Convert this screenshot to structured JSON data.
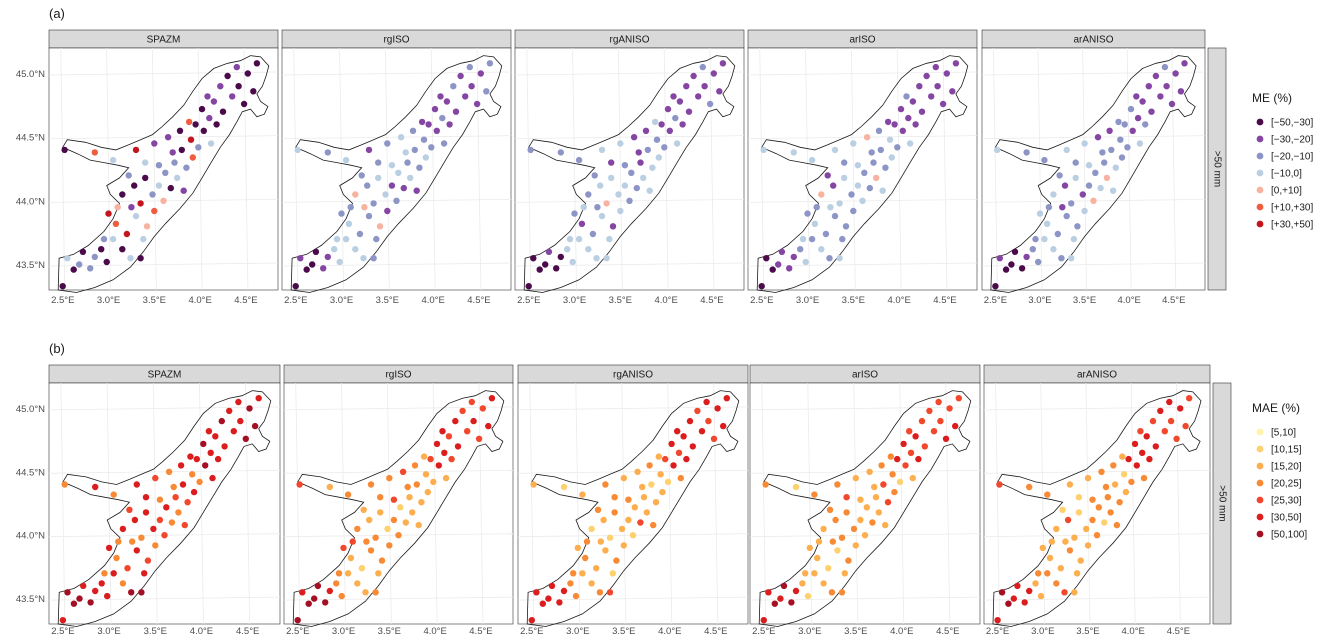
{
  "chart_data": [
    {
      "type": "scatter",
      "panel_label": "(a)",
      "facets": [
        "SPAZM",
        "rgISO",
        "rgANISO",
        "arISO",
        "arANISO"
      ],
      "row_strip": ">50 mm",
      "legend": {
        "title": "ME (%)",
        "placement": "right",
        "entries": [
          {
            "label": "[−50,−30]",
            "color": "#4B0A4A"
          },
          {
            "label": "[−30,−20]",
            "color": "#8546A3"
          },
          {
            "label": "[−20,−10]",
            "color": "#8C95C6"
          },
          {
            "label": "[−10,0]",
            "color": "#BACFE2"
          },
          {
            "label": "[0,+10]",
            "color": "#F8B3A0"
          },
          {
            "label": "[+10,+30]",
            "color": "#EF5D3F"
          },
          {
            "label": "[+30,+50]",
            "color": "#C3151D"
          }
        ]
      },
      "x_ticks": [
        "2.5°E",
        "3.0°E",
        "3.5°E",
        "4.0°E",
        "4.5°E"
      ],
      "y_ticks": [
        "45.0°N",
        "44.5°N",
        "44.0°N",
        "43.5°N"
      ],
      "xlim": [
        2.35,
        4.85
      ],
      "ylim": [
        43.3,
        45.2
      ],
      "grid": true
    },
    {
      "type": "scatter",
      "panel_label": "(b)",
      "facets": [
        "SPAZM",
        "rgISO",
        "rgANISO",
        "arISO",
        "arANISO"
      ],
      "row_strip": ">50 mm",
      "legend": {
        "title": "MAE (%)",
        "placement": "right",
        "entries": [
          {
            "label": "[5,10]",
            "color": "#FFF5A8"
          },
          {
            "label": "[10,15]",
            "color": "#FDD16E"
          },
          {
            "label": "[15,20]",
            "color": "#FDAE4F"
          },
          {
            "label": "[20,25]",
            "color": "#F98A35"
          },
          {
            "label": "[25,30]",
            "color": "#F1472C"
          },
          {
            "label": "[30,50]",
            "color": "#DC1D1D"
          },
          {
            "label": "[50,100]",
            "color": "#A50F23"
          }
        ]
      },
      "x_ticks": [
        "2.5°E",
        "3.0°E",
        "3.5°E",
        "4.0°E",
        "4.5°E"
      ],
      "y_ticks": [
        "45.0°N",
        "44.5°N",
        "44.0°N",
        "43.5°N"
      ],
      "xlim": [
        2.35,
        4.85
      ],
      "ylim": [
        43.3,
        45.2
      ],
      "grid": true
    }
  ]
}
